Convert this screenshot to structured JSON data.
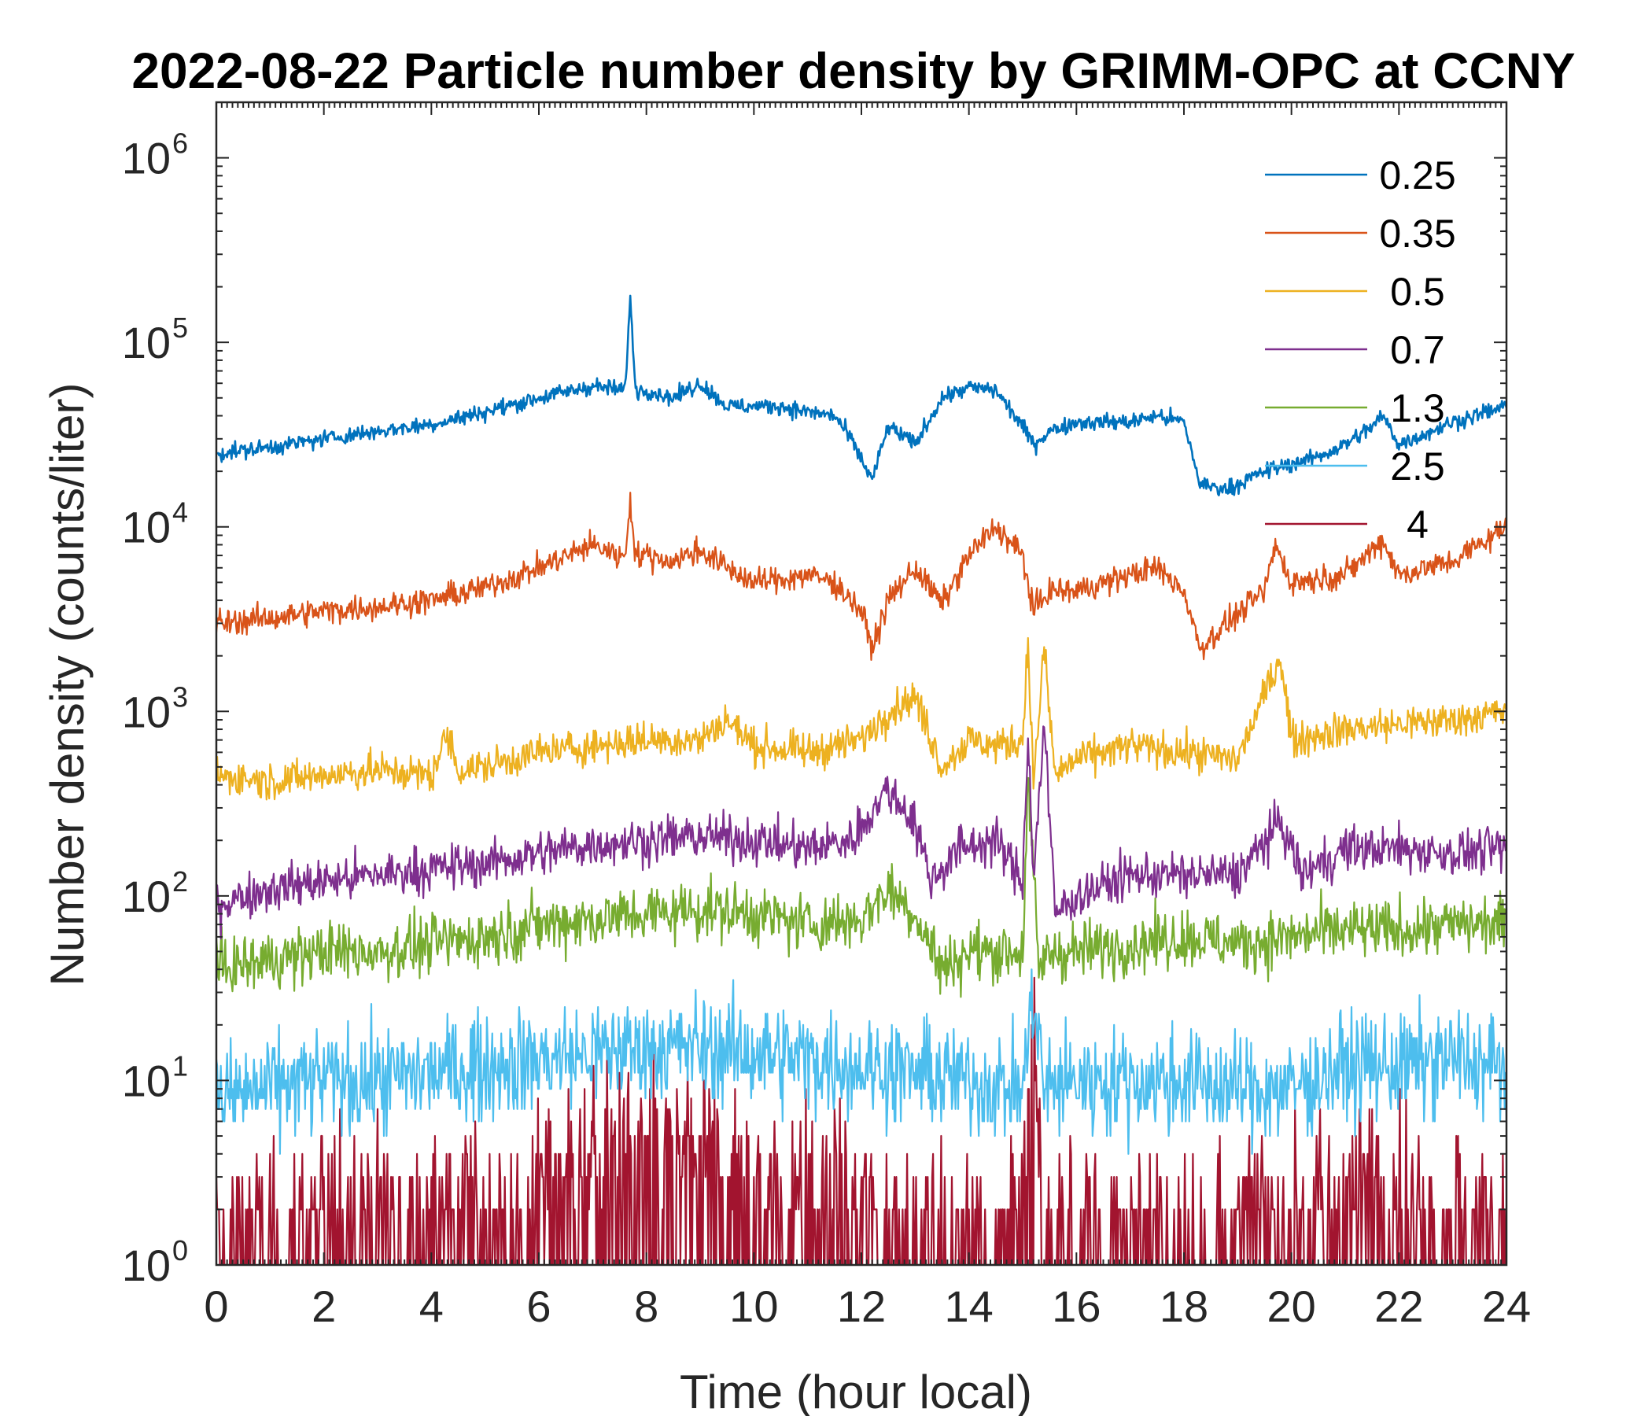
{
  "chart_data": {
    "type": "line",
    "title": "2022-08-22 Particle number density by GRIMM-OPC at CCNY",
    "xlabel": "Time (hour local)",
    "ylabel": "Number density (counts/liter)",
    "yscale": "log",
    "xlim": [
      0,
      24
    ],
    "ylim": [
      1,
      2000000
    ],
    "xticks": [
      "0",
      "2",
      "4",
      "6",
      "8",
      "10",
      "12",
      "14",
      "16",
      "18",
      "20",
      "22",
      "24"
    ],
    "yticks": [
      {
        "base": "10",
        "exp": "0"
      },
      {
        "base": "10",
        "exp": "1"
      },
      {
        "base": "10",
        "exp": "2"
      },
      {
        "base": "10",
        "exp": "3"
      },
      {
        "base": "10",
        "exp": "4"
      },
      {
        "base": "10",
        "exp": "5"
      },
      {
        "base": "10",
        "exp": "6"
      }
    ],
    "legend_position": "top-right",
    "grid": false,
    "series": [
      {
        "name": "0.25",
        "color": "#0072BD",
        "x": [
          0,
          1,
          2,
          3,
          4,
          5,
          6,
          7,
          7.6,
          7.7,
          7.8,
          8,
          8.5,
          9,
          9.5,
          10,
          10.5,
          11,
          11.5,
          11.8,
          12.2,
          12.5,
          13,
          13.5,
          14,
          14.5,
          15,
          15.2,
          15.5,
          16,
          17,
          17.5,
          18,
          18.3,
          18.8,
          19.5,
          20,
          20.5,
          21,
          21.5,
          21.7,
          22,
          22.5,
          23,
          24
        ],
        "y": [
          25000,
          27000,
          30000,
          33000,
          36000,
          42000,
          50000,
          58000,
          55000,
          170000,
          55000,
          55000,
          50000,
          60000,
          45000,
          45000,
          45000,
          42000,
          40000,
          30000,
          18000,
          35000,
          28000,
          50000,
          57000,
          55000,
          35000,
          28000,
          33000,
          37000,
          37000,
          40000,
          37000,
          17000,
          16000,
          20000,
          22000,
          24000,
          28000,
          35000,
          40000,
          28000,
          32000,
          37000,
          45000
        ]
      },
      {
        "name": "0.35",
        "color": "#D95319",
        "x": [
          0,
          1,
          2,
          3,
          4,
          5,
          6,
          7,
          7.6,
          7.7,
          7.8,
          8,
          8.5,
          9,
          9.5,
          10,
          10.5,
          11,
          11.5,
          12,
          12.2,
          12.5,
          13,
          13.5,
          14,
          14.5,
          15,
          15.2,
          15.5,
          16,
          17,
          17.5,
          18,
          18.3,
          18.8,
          19.5,
          19.7,
          20,
          21,
          21.7,
          22,
          23,
          24
        ],
        "y": [
          3000,
          3200,
          3500,
          3700,
          4000,
          4700,
          6000,
          8000,
          6800,
          14000,
          7000,
          7000,
          6500,
          7500,
          6000,
          5000,
          5200,
          5500,
          5000,
          3500,
          2200,
          4000,
          6000,
          3800,
          7000,
          10000,
          7000,
          3500,
          4500,
          4500,
          5500,
          6000,
          4500,
          2200,
          3000,
          4500,
          8000,
          5000,
          5500,
          8500,
          5500,
          6500,
          10000
        ]
      },
      {
        "name": "0.5",
        "color": "#EDB120",
        "x": [
          0,
          1,
          2,
          3,
          4,
          4.3,
          4.5,
          5,
          6,
          7,
          8,
          9,
          9.5,
          10,
          11,
          12,
          12.5,
          13,
          13.5,
          14,
          14.5,
          15,
          15.1,
          15.2,
          15.4,
          15.6,
          16,
          17,
          18,
          19,
          19.8,
          20,
          21,
          22,
          23,
          24
        ],
        "y": [
          450,
          420,
          450,
          480,
          450,
          750,
          480,
          500,
          600,
          650,
          700,
          700,
          900,
          650,
          600,
          700,
          1000,
          1200,
          500,
          700,
          650,
          700,
          2500,
          400,
          2200,
          450,
          550,
          650,
          600,
          550,
          2000,
          700,
          800,
          850,
          900,
          1000
        ]
      },
      {
        "name": "0.7",
        "color": "#7E2F8E",
        "x": [
          0,
          1,
          2,
          3,
          4,
          5,
          6,
          7,
          8,
          9,
          10,
          11,
          11.8,
          12.5,
          13,
          13.3,
          13.8,
          14.5,
          15,
          15.1,
          15.2,
          15.4,
          15.6,
          16,
          17,
          18,
          19,
          19.8,
          20.2,
          21,
          22,
          23,
          24
        ],
        "y": [
          90,
          110,
          120,
          130,
          140,
          150,
          170,
          190,
          200,
          210,
          200,
          180,
          200,
          380,
          250,
          120,
          180,
          200,
          120,
          800,
          120,
          900,
          80,
          100,
          130,
          130,
          130,
          250,
          130,
          180,
          180,
          170,
          180
        ]
      },
      {
        "name": "1.3",
        "color": "#77AC30",
        "x": [
          0,
          1,
          2,
          3,
          4,
          5,
          6,
          7,
          8,
          9,
          10,
          11,
          12,
          12.5,
          13,
          13.5,
          14,
          15,
          15.1,
          15.3,
          15.5,
          16,
          17,
          18,
          19,
          20,
          21,
          22,
          23,
          24
        ],
        "y": [
          40,
          45,
          50,
          50,
          55,
          60,
          70,
          75,
          80,
          85,
          80,
          70,
          75,
          110,
          80,
          40,
          50,
          50,
          400,
          40,
          50,
          50,
          55,
          60,
          55,
          60,
          65,
          65,
          70,
          70
        ]
      },
      {
        "name": "2.5",
        "color": "#4DBEEE",
        "x": [
          0,
          1,
          2,
          3,
          4,
          5,
          6,
          7,
          8,
          9,
          10,
          11,
          12,
          13,
          14,
          15,
          15.2,
          15.4,
          16,
          17,
          18,
          19,
          20,
          21,
          22,
          23,
          24
        ],
        "y": [
          8,
          9,
          10,
          10,
          11,
          12,
          13,
          14,
          15,
          15,
          14,
          13,
          12,
          11,
          10,
          9,
          30,
          9,
          10,
          10,
          10,
          9,
          9,
          12,
          12,
          13,
          12
        ]
      },
      {
        "name": "4",
        "color": "#A2142F",
        "x": [
          0,
          1,
          2,
          3,
          4,
          5,
          6,
          7,
          8,
          9,
          10,
          11,
          12,
          13,
          14,
          15,
          15.2,
          15.4,
          16,
          17,
          18,
          19,
          20,
          21,
          22,
          23,
          24
        ],
        "y": [
          1,
          1.2,
          1.5,
          1.5,
          1.8,
          1.5,
          2,
          3,
          3,
          3,
          2.5,
          2,
          1.5,
          1.2,
          1.2,
          1.5,
          12,
          1.5,
          1.2,
          1.2,
          1.2,
          1.2,
          1.5,
          2,
          2,
          1.5,
          1.5
        ]
      }
    ]
  }
}
